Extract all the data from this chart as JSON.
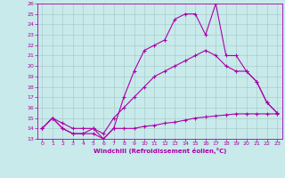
{
  "xlabel": "Windchill (Refroidissement éolien,°C)",
  "xlim": [
    -0.5,
    23.5
  ],
  "ylim": [
    13,
    26
  ],
  "xticks": [
    0,
    1,
    2,
    3,
    4,
    5,
    6,
    7,
    8,
    9,
    10,
    11,
    12,
    13,
    14,
    15,
    16,
    17,
    18,
    19,
    20,
    21,
    22,
    23
  ],
  "yticks": [
    13,
    14,
    15,
    16,
    17,
    18,
    19,
    20,
    21,
    22,
    23,
    24,
    25,
    26
  ],
  "background_color": "#c8eaea",
  "line_color": "#aa00aa",
  "grid_color": "#aacccc",
  "line1_x": [
    0,
    1,
    2,
    3,
    4,
    5,
    6,
    7,
    8,
    9,
    10,
    11,
    12,
    13,
    14,
    15,
    16,
    17,
    18,
    19,
    20,
    21,
    22,
    23
  ],
  "line1_y": [
    14,
    15,
    14,
    13.5,
    13.5,
    13.5,
    13,
    14,
    14,
    14,
    14.2,
    14.3,
    14.5,
    14.6,
    14.8,
    15.0,
    15.1,
    15.2,
    15.3,
    15.4,
    15.4,
    15.4,
    15.4,
    15.4
  ],
  "line2_x": [
    0,
    1,
    2,
    3,
    4,
    5,
    6,
    7,
    8,
    9,
    10,
    11,
    12,
    13,
    14,
    15,
    16,
    17,
    18,
    19,
    20,
    21,
    22,
    23
  ],
  "line2_y": [
    14,
    15,
    14.5,
    14,
    14,
    14,
    13.5,
    15,
    16,
    17,
    18,
    19,
    19.5,
    20,
    20.5,
    21,
    21.5,
    21,
    20,
    19.5,
    19.5,
    18.5,
    16.5,
    15.5
  ],
  "line3_x": [
    0,
    1,
    2,
    3,
    4,
    5,
    6,
    7,
    8,
    9,
    10,
    11,
    12,
    13,
    14,
    15,
    16,
    17,
    18,
    19,
    20,
    21,
    22,
    23
  ],
  "line3_y": [
    14,
    15,
    14,
    13.5,
    13.5,
    14,
    13,
    14,
    17,
    19.5,
    21.5,
    22,
    22.5,
    24.5,
    25,
    25,
    23,
    26,
    21,
    21,
    19.5,
    18.5,
    16.5,
    15.5
  ]
}
